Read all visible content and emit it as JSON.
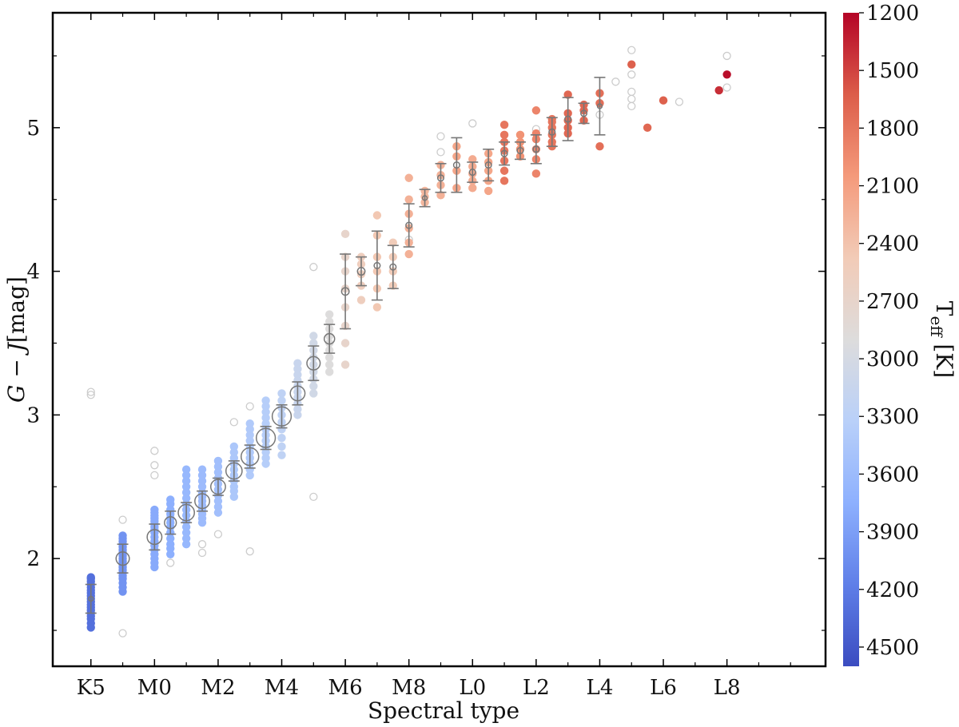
{
  "chart_data": {
    "type": "scatter",
    "title": "",
    "xlabel": "Spectral type",
    "ylabel_parts": {
      "g": "G",
      "minus": " − ",
      "j": "J",
      "unit": "[mag]"
    },
    "colorbar_label_parts": {
      "t": "T",
      "sub": "eff",
      "unit": " [K]"
    },
    "xlim": [
      -1.2,
      23.1
    ],
    "ylim": [
      1.25,
      5.8
    ],
    "grid": false,
    "x_ticks": [
      {
        "v": 0,
        "label": "K5"
      },
      {
        "v": 2,
        "label": "M0"
      },
      {
        "v": 4,
        "label": "M2"
      },
      {
        "v": 6,
        "label": "M4"
      },
      {
        "v": 8,
        "label": "M6"
      },
      {
        "v": 10,
        "label": "M8"
      },
      {
        "v": 12,
        "label": "L0"
      },
      {
        "v": 14,
        "label": "L2"
      },
      {
        "v": 16,
        "label": "L4"
      },
      {
        "v": 18,
        "label": "L6"
      },
      {
        "v": 20,
        "label": "L8"
      }
    ],
    "x_minor_ticks": [
      1,
      3,
      5,
      7,
      9,
      11,
      13,
      15,
      17,
      19,
      21,
      22
    ],
    "y_ticks": [
      {
        "v": 2,
        "label": "2"
      },
      {
        "v": 3,
        "label": "3"
      },
      {
        "v": 4,
        "label": "4"
      },
      {
        "v": 5,
        "label": "5"
      }
    ],
    "y_minor_ticks": [
      1.5,
      2.5,
      3.5,
      4.5,
      5.5
    ],
    "colorbar": {
      "cmap": "coolwarm (reversed)",
      "range_teff": [
        1200,
        4600
      ],
      "ticks": [
        "1200",
        "1500",
        "1800",
        "2100",
        "2400",
        "2700",
        "3000",
        "3300",
        "3600",
        "3900",
        "4200",
        "4500"
      ],
      "tick_values": [
        1200,
        1500,
        1800,
        2100,
        2400,
        2700,
        3000,
        3300,
        3600,
        3900,
        4200,
        4500
      ],
      "color_stops": [
        "#b40426",
        "#dc5d4a",
        "#f49a7b",
        "#f2cbb7",
        "#dddcdc",
        "#b9d0f9",
        "#8db0fe",
        "#5f7fe8",
        "#3b4cc0"
      ]
    },
    "outlier_color": "#cccccc",
    "median_color": "#777777",
    "series": [
      {
        "name": "",
        "x": 0,
        "teff": 4300,
        "values": [
          1.52,
          1.55,
          1.58,
          1.6,
          1.62,
          1.64,
          1.66,
          1.68,
          1.7,
          1.72,
          1.74,
          1.76,
          1.78,
          1.8,
          1.82,
          1.84,
          1.86,
          1.87
        ]
      },
      {
        "name": "",
        "x": 1,
        "teff": 4000,
        "values": [
          1.77,
          1.8,
          1.83,
          1.86,
          1.88,
          1.9,
          1.92,
          1.94,
          1.96,
          1.98,
          2.0,
          2.02,
          2.04,
          2.06,
          2.08,
          2.1,
          2.12,
          2.14,
          2.16
        ]
      },
      {
        "name": "",
        "x": 2,
        "teff": 3800,
        "values": [
          1.94,
          1.97,
          2.0,
          2.03,
          2.06,
          2.09,
          2.12,
          2.15,
          2.18,
          2.2,
          2.22,
          2.24,
          2.26,
          2.28,
          2.3,
          2.32,
          2.34
        ]
      },
      {
        "name": "",
        "x": 2.5,
        "teff": 3750,
        "values": [
          2.03,
          2.07,
          2.1,
          2.14,
          2.18,
          2.22,
          2.25,
          2.28,
          2.31,
          2.34,
          2.38,
          2.41
        ]
      },
      {
        "name": "",
        "x": 3,
        "teff": 3650,
        "values": [
          2.1,
          2.14,
          2.18,
          2.22,
          2.26,
          2.3,
          2.34,
          2.38,
          2.42,
          2.46,
          2.5,
          2.54,
          2.58,
          2.62
        ]
      },
      {
        "name": "",
        "x": 3.5,
        "teff": 3600,
        "values": [
          2.25,
          2.28,
          2.31,
          2.34,
          2.37,
          2.4,
          2.43,
          2.46,
          2.5,
          2.54,
          2.58,
          2.62
        ]
      },
      {
        "name": "",
        "x": 4,
        "teff": 3550,
        "values": [
          2.32,
          2.36,
          2.4,
          2.44,
          2.48,
          2.52,
          2.56,
          2.6,
          2.64,
          2.68
        ]
      },
      {
        "name": "",
        "x": 4.5,
        "teff": 3450,
        "values": [
          2.43,
          2.47,
          2.5,
          2.54,
          2.58,
          2.62,
          2.66,
          2.7,
          2.74,
          2.78
        ]
      },
      {
        "name": "",
        "x": 5,
        "teff": 3400,
        "values": [
          2.58,
          2.62,
          2.66,
          2.7,
          2.74,
          2.78,
          2.82,
          2.86,
          2.9,
          2.94
        ]
      },
      {
        "name": "",
        "x": 5.5,
        "teff": 3350,
        "values": [
          2.66,
          2.7,
          2.74,
          2.78,
          2.82,
          2.86,
          2.9,
          2.94,
          2.98,
          3.02,
          3.06,
          3.1
        ]
      },
      {
        "name": "",
        "x": 6,
        "teff": 3250,
        "values": [
          2.72,
          2.78,
          2.84,
          2.9,
          2.95,
          3.0,
          3.05,
          3.1,
          3.15
        ]
      },
      {
        "name": "",
        "x": 6.5,
        "teff": 3150,
        "values": [
          3.0,
          3.04,
          3.08,
          3.12,
          3.16,
          3.2,
          3.24,
          3.28,
          3.32,
          3.36
        ]
      },
      {
        "name": "",
        "x": 7,
        "teff": 3050,
        "values": [
          3.15,
          3.2,
          3.25,
          3.3,
          3.35,
          3.4,
          3.45,
          3.5,
          3.55
        ]
      },
      {
        "name": "",
        "x": 7.5,
        "teff": 2900,
        "values": [
          3.3,
          3.35,
          3.4,
          3.45,
          3.5,
          3.55,
          3.6,
          3.65,
          3.7
        ]
      },
      {
        "name": "",
        "x": 8,
        "teff": 2700,
        "values": [
          3.35,
          3.5,
          3.62,
          3.75,
          3.88,
          4.0,
          4.1,
          4.26
        ]
      },
      {
        "name": "",
        "x": 8.5,
        "teff": 2550,
        "values": [
          3.8,
          3.9,
          3.98,
          4.05,
          4.1
        ]
      },
      {
        "name": "",
        "x": 9,
        "teff": 2450,
        "values": [
          3.75,
          3.88,
          4.0,
          4.1,
          4.25,
          4.39
        ]
      },
      {
        "name": "",
        "x": 9.5,
        "teff": 2500,
        "values": [
          3.9,
          4.0,
          4.1,
          4.2
        ]
      },
      {
        "name": "",
        "x": 10,
        "teff": 2250,
        "values": [
          4.12,
          4.2,
          4.3,
          4.4,
          4.5,
          4.65
        ]
      },
      {
        "name": "",
        "x": 10.5,
        "teff": 2300,
        "values": [
          4.48,
          4.52,
          4.56
        ]
      },
      {
        "name": "",
        "x": 11,
        "teff": 2250,
        "values": [
          4.53,
          4.6,
          4.67,
          4.74
        ]
      },
      {
        "name": "",
        "x": 11.5,
        "teff": 2150,
        "values": [
          4.58,
          4.7,
          4.8,
          4.87
        ]
      },
      {
        "name": "",
        "x": 12,
        "teff": 2200,
        "values": [
          4.58,
          4.63,
          4.68,
          4.73,
          4.78
        ]
      },
      {
        "name": "",
        "x": 12.5,
        "teff": 2150,
        "values": [
          4.56,
          4.63,
          4.7,
          4.76,
          4.82
        ]
      },
      {
        "name": "",
        "x": 13,
        "teff": 1800,
        "values": [
          4.63,
          4.7,
          4.77,
          4.84,
          4.9,
          4.95,
          5.02
        ]
      },
      {
        "name": "",
        "x": 13.5,
        "teff": 2000,
        "values": [
          4.8,
          4.85,
          4.9,
          4.95
        ]
      },
      {
        "name": "",
        "x": 14,
        "teff": 1900,
        "values": [
          4.68,
          4.78,
          4.85,
          4.92,
          4.96,
          5.12
        ]
      },
      {
        "name": "",
        "x": 14.5,
        "teff": 1800,
        "values": [
          4.87,
          4.9,
          4.95,
          5.0,
          5.04,
          5.06
        ]
      },
      {
        "name": "",
        "x": 15,
        "teff": 1700,
        "values": [
          4.96,
          5.0,
          5.05,
          5.1,
          5.23
        ]
      },
      {
        "name": "",
        "x": 15.5,
        "teff": 1700,
        "values": [
          5.05,
          5.12,
          5.16
        ]
      },
      {
        "name": "",
        "x": 16,
        "teff": 1750,
        "values": [
          4.87,
          5.17,
          5.24
        ]
      },
      {
        "name": "",
        "x": 17,
        "teff": 1650,
        "values": [
          5.44
        ]
      },
      {
        "name": "",
        "x": 17.5,
        "teff": 1700,
        "values": [
          5.0
        ]
      },
      {
        "name": "",
        "x": 18,
        "teff": 1650,
        "values": [
          5.19
        ]
      },
      {
        "name": "",
        "x": 19.75,
        "teff": 1400,
        "values": [
          5.26
        ]
      },
      {
        "name": "",
        "x": 20,
        "teff": 1250,
        "values": [
          5.37
        ]
      }
    ],
    "outliers": [
      {
        "x": 0,
        "y": 3.14
      },
      {
        "x": 0,
        "y": 3.16
      },
      {
        "x": 1,
        "y": 2.27
      },
      {
        "x": 1,
        "y": 1.48
      },
      {
        "x": 2,
        "y": 2.58
      },
      {
        "x": 2,
        "y": 2.65
      },
      {
        "x": 2,
        "y": 2.75
      },
      {
        "x": 2.5,
        "y": 1.97
      },
      {
        "x": 3.5,
        "y": 2.04
      },
      {
        "x": 3.5,
        "y": 2.1
      },
      {
        "x": 4,
        "y": 2.17
      },
      {
        "x": 4.5,
        "y": 2.95
      },
      {
        "x": 5,
        "y": 2.05
      },
      {
        "x": 5,
        "y": 3.06
      },
      {
        "x": 7,
        "y": 2.43
      },
      {
        "x": 7,
        "y": 4.03
      },
      {
        "x": 10,
        "y": 4.22
      },
      {
        "x": 11,
        "y": 4.83
      },
      {
        "x": 11,
        "y": 4.94
      },
      {
        "x": 12,
        "y": 5.03
      },
      {
        "x": 14,
        "y": 4.99
      },
      {
        "x": 16,
        "y": 5.09
      },
      {
        "x": 16.5,
        "y": 5.32
      },
      {
        "x": 17,
        "y": 5.15
      },
      {
        "x": 17,
        "y": 5.2
      },
      {
        "x": 17,
        "y": 5.25
      },
      {
        "x": 17,
        "y": 5.37
      },
      {
        "x": 17,
        "y": 5.54
      },
      {
        "x": 18.5,
        "y": 5.18
      },
      {
        "x": 20,
        "y": 5.28
      },
      {
        "x": 20,
        "y": 5.5
      }
    ],
    "medians": [
      {
        "x": 0,
        "y": 1.72,
        "err": 0.1,
        "size": 1
      },
      {
        "x": 1,
        "y": 2.0,
        "err": 0.1,
        "size": 7
      },
      {
        "x": 2,
        "y": 2.15,
        "err": 0.09,
        "size": 8
      },
      {
        "x": 2.5,
        "y": 2.25,
        "err": 0.08,
        "size": 6
      },
      {
        "x": 3,
        "y": 2.32,
        "err": 0.07,
        "size": 9
      },
      {
        "x": 3.5,
        "y": 2.4,
        "err": 0.07,
        "size": 8
      },
      {
        "x": 4,
        "y": 2.5,
        "err": 0.06,
        "size": 8
      },
      {
        "x": 4.5,
        "y": 2.61,
        "err": 0.07,
        "size": 9
      },
      {
        "x": 5,
        "y": 2.71,
        "err": 0.08,
        "size": 10
      },
      {
        "x": 5.5,
        "y": 2.84,
        "err": 0.08,
        "size": 11
      },
      {
        "x": 6,
        "y": 2.99,
        "err": 0.08,
        "size": 11
      },
      {
        "x": 6.5,
        "y": 3.15,
        "err": 0.08,
        "size": 8
      },
      {
        "x": 7,
        "y": 3.36,
        "err": 0.12,
        "size": 7
      },
      {
        "x": 7.5,
        "y": 3.53,
        "err": 0.1,
        "size": 5
      },
      {
        "x": 8,
        "y": 3.86,
        "err": 0.26,
        "size": 3
      },
      {
        "x": 8.5,
        "y": 4.0,
        "err": 0.1,
        "size": 3
      },
      {
        "x": 9,
        "y": 4.04,
        "err": 0.24,
        "size": 2
      },
      {
        "x": 9.5,
        "y": 4.03,
        "err": 0.15,
        "size": 2
      },
      {
        "x": 10,
        "y": 4.32,
        "err": 0.15,
        "size": 2
      },
      {
        "x": 10.5,
        "y": 4.51,
        "err": 0.06,
        "size": 1
      },
      {
        "x": 11,
        "y": 4.65,
        "err": 0.1,
        "size": 2
      },
      {
        "x": 11.5,
        "y": 4.74,
        "err": 0.19,
        "size": 2
      },
      {
        "x": 12,
        "y": 4.69,
        "err": 0.07,
        "size": 2
      },
      {
        "x": 12.5,
        "y": 4.74,
        "err": 0.11,
        "size": 2
      },
      {
        "x": 13,
        "y": 4.82,
        "err": 0.08,
        "size": 2
      },
      {
        "x": 13.5,
        "y": 4.84,
        "err": 0.06,
        "size": 2
      },
      {
        "x": 14,
        "y": 4.85,
        "err": 0.1,
        "size": 2
      },
      {
        "x": 14.5,
        "y": 4.97,
        "err": 0.1,
        "size": 2
      },
      {
        "x": 15,
        "y": 5.06,
        "err": 0.15,
        "size": 2
      },
      {
        "x": 15.5,
        "y": 5.1,
        "err": 0.07,
        "size": 2
      },
      {
        "x": 16,
        "y": 5.15,
        "err": 0.2,
        "size": 1
      }
    ]
  }
}
